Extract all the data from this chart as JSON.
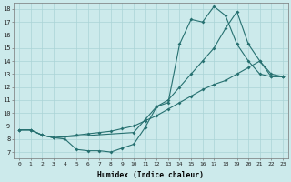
{
  "bg_color": "#cceaeb",
  "line_color": "#267070",
  "grid_color": "#aad4d6",
  "xlabel": "Humidex (Indice chaleur)",
  "xticks": [
    0,
    1,
    2,
    3,
    4,
    5,
    6,
    7,
    8,
    9,
    10,
    11,
    12,
    13,
    14,
    15,
    16,
    17,
    18,
    19,
    20,
    21,
    22,
    23
  ],
  "yticks": [
    7,
    8,
    9,
    10,
    11,
    12,
    13,
    14,
    15,
    16,
    17,
    18
  ],
  "xlim": [
    -0.5,
    23.5
  ],
  "ylim": [
    6.5,
    18.5
  ],
  "curve1_x": [
    0,
    1,
    2,
    3,
    4,
    5,
    6,
    7,
    8,
    9,
    10,
    11,
    12,
    13,
    14,
    15,
    16,
    17,
    18,
    19,
    20,
    21,
    22,
    23
  ],
  "curve1_y": [
    8.7,
    8.7,
    8.3,
    8.1,
    8.0,
    7.2,
    7.1,
    7.1,
    7.0,
    7.3,
    7.6,
    8.9,
    10.5,
    10.8,
    15.3,
    17.2,
    17.0,
    18.2,
    17.5,
    15.3,
    14.0,
    13.0,
    12.8,
    12.8
  ],
  "curve2_x": [
    0,
    1,
    2,
    3,
    4,
    5,
    6,
    7,
    8,
    9,
    10,
    11,
    12,
    13,
    14,
    15,
    16,
    17,
    18,
    19,
    20,
    21,
    22,
    23
  ],
  "curve2_y": [
    8.7,
    8.7,
    8.3,
    8.1,
    8.2,
    8.3,
    8.4,
    8.5,
    8.6,
    8.8,
    9.0,
    9.4,
    9.8,
    10.3,
    10.8,
    11.3,
    11.8,
    12.2,
    12.5,
    13.0,
    13.5,
    14.0,
    12.8,
    12.8
  ],
  "curve3_x": [
    0,
    1,
    2,
    3,
    10,
    11,
    12,
    13,
    14,
    15,
    16,
    17,
    18,
    19,
    20,
    21,
    22,
    23
  ],
  "curve3_y": [
    8.7,
    8.7,
    8.3,
    8.1,
    8.5,
    9.5,
    10.5,
    11.0,
    12.0,
    13.0,
    14.0,
    15.0,
    16.5,
    17.8,
    15.3,
    14.0,
    13.0,
    12.8
  ]
}
